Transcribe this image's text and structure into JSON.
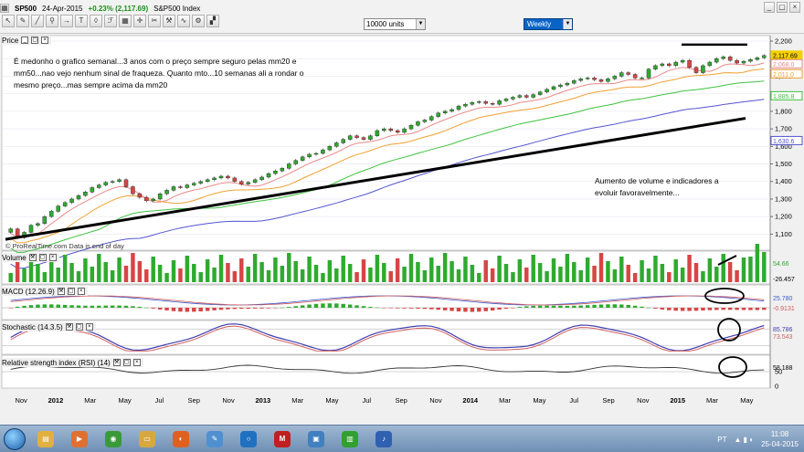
{
  "toolbar": {
    "symbol": "SP500",
    "date": "24-Apr-2015",
    "change": "+0.23% (2,117.69)",
    "name": "S&P500 Index",
    "icons": [
      "cursor-icon",
      "pencil-icon",
      "line-tool-icon",
      "magnifier-icon",
      "arrow-icon",
      "text-icon",
      "pattern-icon",
      "fibonacci-icon",
      "grid-icon",
      "crosshair-icon",
      "scissors-icon",
      "tools-icon",
      "indicator-icon",
      "settings-icon",
      "paint-icon"
    ],
    "units": "10000 units",
    "period": "Weekly"
  },
  "panels": {
    "price": "Price",
    "volume": "Volume",
    "macd": "MACD (12.26.9)",
    "stochastic": "Stochastic (14.3.5)",
    "rsi": "Relative strength index (RSI) (14)"
  },
  "watermark": "© ProRealTime.com  Data is end of day",
  "annotations": {
    "top": [
      "É medonho o grafico semanal...3 anos com o preço sempre seguro pelas mm20 e",
      "mm50...nao vejo nenhum sinal de fraqueza. Quanto mto...10 semanas ali a rondar o",
      "mesmo preço...mas sempre acima da mm20"
    ],
    "right": [
      "Aumento de volume e indicadores a",
      "evoluir favoravelmente..."
    ]
  },
  "colors": {
    "up": "#2faa2f",
    "down": "#d64545",
    "mm20": "#e88a8a",
    "mm50": "#f0a030",
    "mm100": "#3fc23f",
    "mm200": "#5555d0",
    "trendline": "#000000"
  },
  "chart_data": [
    {
      "type": "candlestick",
      "series": [
        {
          "name": "SP500",
          "values": [
            1130,
            1080,
            1110,
            1150,
            1160,
            1200,
            1230,
            1260,
            1280,
            1300,
            1320,
            1340,
            1365,
            1380,
            1395,
            1400,
            1410,
            1370,
            1330,
            1310,
            1290,
            1300,
            1330,
            1350,
            1370,
            1365,
            1380,
            1390,
            1400,
            1410,
            1420,
            1430,
            1420,
            1400,
            1385,
            1395,
            1410,
            1425,
            1445,
            1460,
            1475,
            1500,
            1520,
            1540,
            1555,
            1560,
            1580,
            1600,
            1620,
            1640,
            1660,
            1650,
            1640,
            1660,
            1690,
            1700,
            1690,
            1680,
            1700,
            1720,
            1740,
            1750,
            1770,
            1790,
            1800,
            1810,
            1830,
            1840,
            1850,
            1855,
            1845,
            1840,
            1860,
            1870,
            1880,
            1890,
            1880,
            1895,
            1910,
            1925,
            1940,
            1950,
            1960,
            1975,
            1985,
            1990,
            1980,
            1970,
            1985,
            2000,
            2020,
            2010,
            1990,
            1990,
            2040,
            2060,
            2070,
            2060,
            2080,
            2090,
            2050,
            2020,
            2060,
            2080,
            2100,
            2110,
            2090,
            2075,
            2085,
            2095,
            2105,
            2117.69
          ]
        }
      ],
      "x_labels": [
        "Nov",
        "2012",
        "Mar",
        "May",
        "Jul",
        "Sep",
        "Nov",
        "2013",
        "Mar",
        "May",
        "Jul",
        "Sep",
        "Nov",
        "2014",
        "Mar",
        "May",
        "Jul",
        "Sep",
        "Nov",
        "2015",
        "Mar",
        "May"
      ],
      "moving_averages": [
        "mm20",
        "mm50",
        "mm100",
        "mm200"
      ],
      "price_labels": [
        "2,117.69",
        "2,068.0",
        "2,011.0",
        "1,885.8",
        "1,630.6"
      ],
      "yticks": [
        1100,
        1200,
        1300,
        1400,
        1500,
        1600,
        1700,
        1800,
        1900,
        2000,
        2100,
        2200
      ],
      "ylim": [
        1050,
        2200
      ]
    },
    {
      "type": "bar",
      "title": "Volume",
      "value_labels": [
        "54.66",
        "-26.457"
      ]
    },
    {
      "type": "line",
      "title": "MACD (12.26.9)",
      "value_labels": [
        "25.780",
        "-0.9131"
      ]
    },
    {
      "type": "line",
      "title": "Stochastic (14.3.5)",
      "value_labels": [
        "85.786",
        "73.543"
      ]
    },
    {
      "type": "line",
      "title": "Relative strength index (RSI) (14)",
      "value_labels": [
        "58.188"
      ],
      "yticks": [
        0,
        50
      ]
    }
  ],
  "taskbar": {
    "apps": [
      {
        "name": "explorer-app",
        "glyph": "▤",
        "color": "#e0b040"
      },
      {
        "name": "media-app",
        "glyph": "▶",
        "color": "#e07030"
      },
      {
        "name": "chrome-app",
        "glyph": "◉",
        "color": "#3a9a3a"
      },
      {
        "name": "folder-app",
        "glyph": "▭",
        "color": "#d8a840"
      },
      {
        "name": "firefox-app",
        "glyph": "◐",
        "color": "#e06020"
      },
      {
        "name": "paint-app",
        "glyph": "✎",
        "color": "#5090d0"
      },
      {
        "name": "circle-app",
        "glyph": "○",
        "color": "#2070c0"
      },
      {
        "name": "antivirus-app",
        "glyph": "M",
        "color": "#c02020"
      },
      {
        "name": "image-app",
        "glyph": "▣",
        "color": "#4080c0"
      },
      {
        "name": "trading-app",
        "glyph": "▥",
        "color": "#30a030"
      },
      {
        "name": "music-app",
        "glyph": "♪",
        "color": "#3060b0"
      }
    ],
    "lang": "PT",
    "time": "11:08",
    "date": "25-04-2015"
  }
}
